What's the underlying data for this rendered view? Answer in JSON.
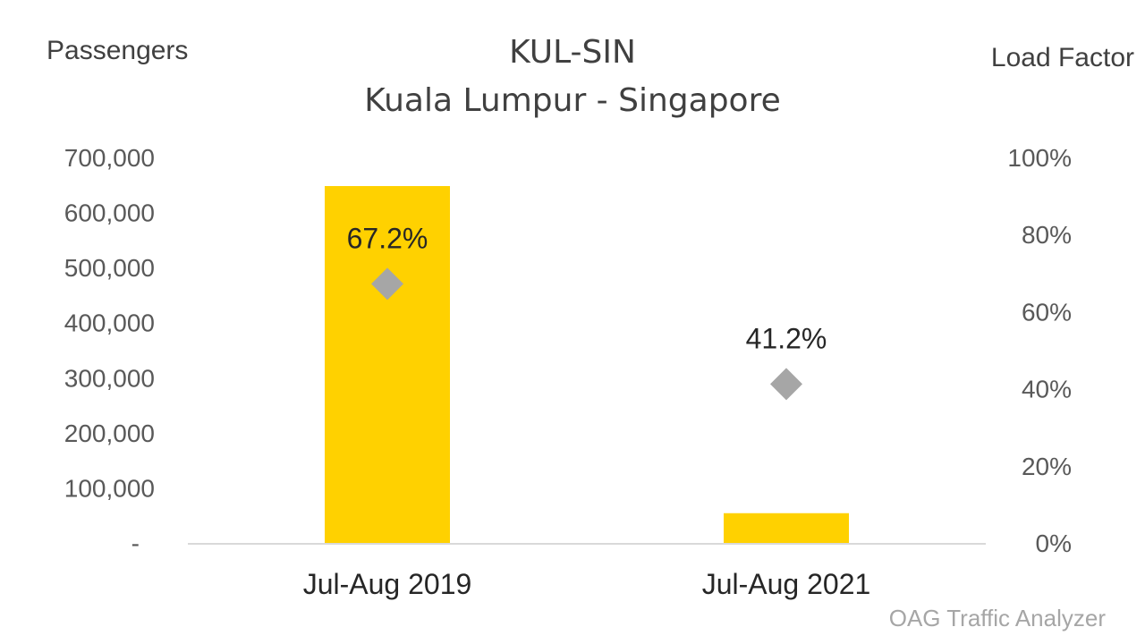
{
  "chart_data": {
    "type": "bar",
    "title": "KUL-SIN",
    "subtitle": "Kuala Lumpur - Singapore",
    "ylabel": "Passengers",
    "y2label": "Load Factor",
    "categories": [
      "Jul-Aug 2019",
      "Jul-Aug 2021"
    ],
    "series": [
      {
        "name": "Passengers",
        "kind": "bar",
        "axis": "left",
        "color": "#FFD100",
        "values": [
          648000,
          54000
        ]
      },
      {
        "name": "Load Factor",
        "kind": "marker",
        "marker": "diamond",
        "axis": "right",
        "color": "#A6A6A6",
        "values": [
          67.2,
          41.2
        ],
        "labels": [
          "67.2%",
          "41.2%"
        ]
      }
    ],
    "ylim": [
      0,
      700000
    ],
    "y2lim": [
      0,
      100
    ],
    "yticks": [
      {
        "value": 0,
        "label": "-"
      },
      {
        "value": 100000,
        "label": "100,000"
      },
      {
        "value": 200000,
        "label": "200,000"
      },
      {
        "value": 300000,
        "label": "300,000"
      },
      {
        "value": 400000,
        "label": "400,000"
      },
      {
        "value": 500000,
        "label": "500,000"
      },
      {
        "value": 600000,
        "label": "600,000"
      },
      {
        "value": 700000,
        "label": "700,000"
      }
    ],
    "y2ticks": [
      {
        "value": 0,
        "label": "0%"
      },
      {
        "value": 20,
        "label": "20%"
      },
      {
        "value": 40,
        "label": "40%"
      },
      {
        "value": 60,
        "label": "60%"
      },
      {
        "value": 80,
        "label": "80%"
      },
      {
        "value": 100,
        "label": "100%"
      }
    ],
    "grid": false,
    "legend": "none",
    "source": "OAG Traffic Analyzer"
  }
}
